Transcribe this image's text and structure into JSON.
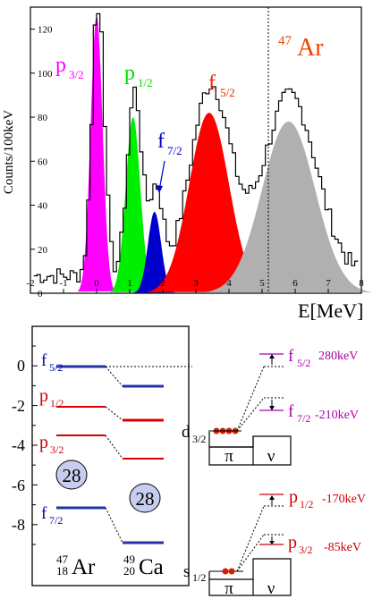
{
  "spectrum": {
    "ylabel": "Counts/100keV",
    "xlabel": "E[MeV]",
    "isotope_mass": "47",
    "isotope_symbol": "Ar",
    "y_ticks": [
      "0",
      "20",
      "40",
      "60",
      "80",
      "100",
      "120"
    ],
    "x_ticks": [
      "-2",
      "-1",
      "0",
      "1",
      "2",
      "3",
      "4",
      "5",
      "6",
      "7",
      "8"
    ],
    "peaks": [
      {
        "label_main": "p",
        "label_sub": "3/2",
        "color": "#ff00ff",
        "center": 0.0,
        "height": 126,
        "width": 0.18
      },
      {
        "label_main": "p",
        "label_sub": "1/2",
        "color": "#00ee00",
        "center": 1.1,
        "height": 80,
        "width": 0.22
      },
      {
        "label_main": "f",
        "label_sub": "7/2",
        "color": "#0000cc",
        "center": 1.75,
        "height": 37,
        "width": 0.2
      },
      {
        "label_main": "f",
        "label_sub": "5/2",
        "color": "#ff0000",
        "center": 3.4,
        "height": 82,
        "width": 0.6
      },
      {
        "label_main": "",
        "label_sub": "",
        "color": "#b0b0b0",
        "center": 5.8,
        "height": 78,
        "width": 0.8
      }
    ]
  },
  "levels": {
    "y_ticks": [
      "0",
      "-2",
      "-4",
      "-6",
      "-8"
    ],
    "left_labels": [
      {
        "main": "f",
        "sub": "5/2",
        "color": "#0000aa"
      },
      {
        "main": "p",
        "sub": "1/2",
        "color": "#cc0000"
      },
      {
        "main": "p",
        "sub": "3/2",
        "color": "#cc0000"
      },
      {
        "main": "f",
        "sub": "7/2",
        "color": "#0000aa"
      }
    ],
    "shell_closure_left": "28",
    "shell_closure_right": "28",
    "nucleus_left": {
      "mass": "47",
      "charge": "18",
      "symbol": "Ar"
    },
    "nucleus_right": {
      "mass": "49",
      "charge": "20",
      "symbol": "Ca"
    }
  },
  "schematic_top": {
    "proton_orbital": {
      "main": "d",
      "sub": "3/2"
    },
    "pi": "π",
    "nu": "ν",
    "states": [
      {
        "main": "f",
        "sub": "5/2",
        "shift": "280keV",
        "color": "#aa00aa"
      },
      {
        "main": "f",
        "sub": "7/2",
        "shift": "-210keV",
        "color": "#aa00aa"
      }
    ]
  },
  "schematic_bottom": {
    "proton_orbital": {
      "main": "s",
      "sub": "1/2"
    },
    "pi": "π",
    "nu": "ν",
    "states": [
      {
        "main": "p",
        "sub": "1/2",
        "shift": "-170keV",
        "color": "#cc0000"
      },
      {
        "main": "p",
        "sub": "3/2",
        "shift": "-85keV",
        "color": "#cc0000"
      }
    ]
  }
}
